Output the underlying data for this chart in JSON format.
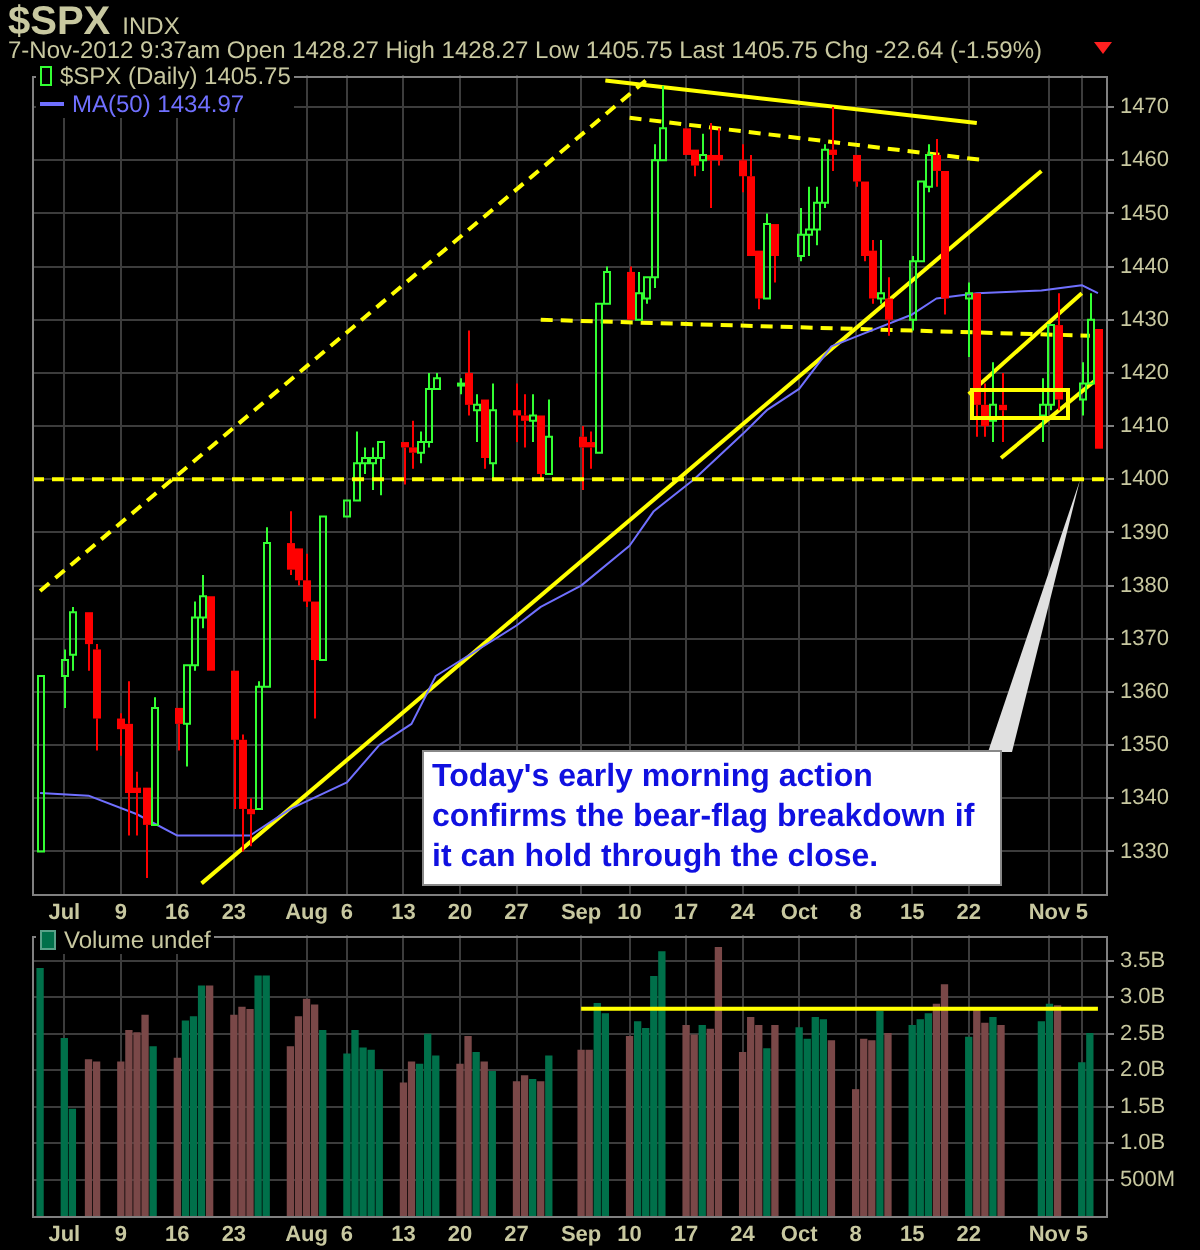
{
  "chart_data": [
    {
      "type": "candlestick",
      "title": "$SPX",
      "subtitle": "7-Nov-2012 9:37am  Open 1428.27  High 1428.27  Low 1405.75  Last 1405.75  Chg -22.64 (-1.59%)",
      "annotations": [
        "INDX",
        "Today's early morning action confirms the bear-flag breakdown if it can hold through the close."
      ],
      "x": [
        "2012-06-29",
        "2012-07-02",
        "2012-07-03",
        "2012-07-05",
        "2012-07-06",
        "2012-07-09",
        "2012-07-10",
        "2012-07-11",
        "2012-07-12",
        "2012-07-13",
        "2012-07-16",
        "2012-07-17",
        "2012-07-18",
        "2012-07-19",
        "2012-07-20",
        "2012-07-23",
        "2012-07-24",
        "2012-07-25",
        "2012-07-26",
        "2012-07-27",
        "2012-07-30",
        "2012-07-31",
        "2012-08-01",
        "2012-08-02",
        "2012-08-03",
        "2012-08-06",
        "2012-08-07",
        "2012-08-08",
        "2012-08-09",
        "2012-08-10",
        "2012-08-13",
        "2012-08-14",
        "2012-08-15",
        "2012-08-16",
        "2012-08-17",
        "2012-08-20",
        "2012-08-21",
        "2012-08-22",
        "2012-08-23",
        "2012-08-24",
        "2012-08-27",
        "2012-08-28",
        "2012-08-29",
        "2012-08-30",
        "2012-08-31",
        "2012-09-04",
        "2012-09-05",
        "2012-09-06",
        "2012-09-07",
        "2012-09-10",
        "2012-09-11",
        "2012-09-12",
        "2012-09-13",
        "2012-09-14",
        "2012-09-17",
        "2012-09-18",
        "2012-09-19",
        "2012-09-20",
        "2012-09-21",
        "2012-09-24",
        "2012-09-25",
        "2012-09-26",
        "2012-09-27",
        "2012-09-28",
        "2012-10-01",
        "2012-10-02",
        "2012-10-03",
        "2012-10-04",
        "2012-10-05",
        "2012-10-08",
        "2012-10-09",
        "2012-10-10",
        "2012-10-11",
        "2012-10-12",
        "2012-10-15",
        "2012-10-16",
        "2012-10-17",
        "2012-10-18",
        "2012-10-19",
        "2012-10-22",
        "2012-10-23",
        "2012-10-24",
        "2012-10-25",
        "2012-10-26",
        "2012-10-31",
        "2012-11-01",
        "2012-11-02",
        "2012-11-05",
        "2012-11-06",
        "2012-11-07"
      ],
      "xticks": [
        {
          "value": "2012-07-02",
          "label": "Jul"
        },
        {
          "value": "2012-07-09",
          "label": "9"
        },
        {
          "value": "2012-07-16",
          "label": "16"
        },
        {
          "value": "2012-07-23",
          "label": "23"
        },
        {
          "value": "2012-08-01",
          "label": "Aug"
        },
        {
          "value": "2012-08-06",
          "label": "6"
        },
        {
          "value": "2012-08-13",
          "label": "13"
        },
        {
          "value": "2012-08-20",
          "label": "20"
        },
        {
          "value": "2012-08-27",
          "label": "27"
        },
        {
          "value": "2012-09-04",
          "label": "Sep"
        },
        {
          "value": "2012-09-10",
          "label": "10"
        },
        {
          "value": "2012-09-17",
          "label": "17"
        },
        {
          "value": "2012-09-24",
          "label": "24"
        },
        {
          "value": "2012-10-01",
          "label": "Oct"
        },
        {
          "value": "2012-10-08",
          "label": "8"
        },
        {
          "value": "2012-10-15",
          "label": "15"
        },
        {
          "value": "2012-10-22",
          "label": "22"
        },
        {
          "value": "2012-11-01",
          "label": "Nov"
        },
        {
          "value": "2012-11-05",
          "label": "5"
        }
      ],
      "xlim": [
        "2012-06-28",
        "2012-11-08"
      ],
      "ylim": [
        1322,
        1476
      ],
      "yticks": [
        1330,
        1340,
        1350,
        1360,
        1370,
        1380,
        1390,
        1400,
        1410,
        1420,
        1430,
        1440,
        1450,
        1460,
        1470
      ],
      "grid": true,
      "legend": "top left",
      "ref_lines": [
        {
          "axis": "y",
          "value": 1400,
          "color": "#ffff00",
          "line_style": "dashed"
        }
      ],
      "series": [
        {
          "type": "candlestick",
          "name": "$SPX (Daily) 1405.75",
          "ohlc": [
            [
              1330,
              1363,
              1330,
              1363
            ],
            [
              1363,
              1368,
              1357,
              1366
            ],
            [
              1367,
              1376,
              1364,
              1375
            ],
            [
              1375,
              1375,
              1364,
              1369
            ],
            [
              1368,
              1369,
              1349,
              1355
            ],
            [
              1355,
              1356,
              1348,
              1353
            ],
            [
              1354,
              1362,
              1333,
              1341
            ],
            [
              1342,
              1345,
              1333,
              1341
            ],
            [
              1342,
              1342,
              1325,
              1335
            ],
            [
              1335,
              1359,
              1335,
              1357
            ],
            [
              1357,
              1357,
              1349,
              1354
            ],
            [
              1354,
              1365,
              1346,
              1365
            ],
            [
              1365,
              1377,
              1364,
              1374
            ],
            [
              1374,
              1382,
              1372,
              1378
            ],
            [
              1378,
              1378,
              1364,
              1364
            ],
            [
              1364,
              1364,
              1338,
              1351
            ],
            [
              1351,
              1352,
              1330,
              1338
            ],
            [
              1338,
              1340,
              1331,
              1337
            ],
            [
              1338,
              1362,
              1338,
              1361
            ],
            [
              1361,
              1391,
              1361,
              1388
            ],
            [
              1388,
              1394,
              1382,
              1383
            ],
            [
              1387,
              1387,
              1380,
              1381
            ],
            [
              1381,
              1386,
              1376,
              1377
            ],
            [
              1377,
              1377,
              1355,
              1366
            ],
            [
              1366,
              1393,
              1366,
              1393
            ],
            [
              1393,
              1396,
              1393,
              1396
            ],
            [
              1396,
              1409,
              1396,
              1403
            ],
            [
              1403,
              1406,
              1401,
              1404
            ],
            [
              1403,
              1406,
              1398,
              1404
            ],
            [
              1404,
              1407,
              1397,
              1407
            ],
            [
              1407,
              1407,
              1399,
              1406
            ],
            [
              1406,
              1411,
              1402,
              1405
            ],
            [
              1405,
              1409,
              1403,
              1407
            ],
            [
              1407,
              1420,
              1406,
              1417
            ],
            [
              1417,
              1420,
              1417,
              1419
            ],
            [
              1418,
              1419,
              1416,
              1418
            ],
            [
              1420,
              1428,
              1412,
              1414
            ],
            [
              1413,
              1416,
              1407,
              1414
            ],
            [
              1415,
              1415,
              1402,
              1404
            ],
            [
              1403,
              1418,
              1400,
              1413
            ],
            [
              1413,
              1418,
              1407,
              1412
            ],
            [
              1412,
              1416,
              1406,
              1411
            ],
            [
              1411,
              1416,
              1407,
              1412
            ],
            [
              1412,
              1412,
              1400,
              1401
            ],
            [
              1401,
              1415,
              1401,
              1408
            ],
            [
              1408,
              1410,
              1398,
              1406
            ],
            [
              1407,
              1409,
              1402,
              1406
            ],
            [
              1405,
              1433,
              1405,
              1433
            ],
            [
              1433,
              1440,
              1433,
              1439
            ],
            [
              1439,
              1440,
              1430,
              1430
            ],
            [
              1430,
              1439,
              1430,
              1435
            ],
            [
              1434,
              1438,
              1433,
              1438
            ],
            [
              1438,
              1463,
              1436,
              1460
            ],
            [
              1460,
              1474,
              1460,
              1466
            ],
            [
              1466,
              1466,
              1461,
              1461
            ],
            [
              1462,
              1462,
              1457,
              1459
            ],
            [
              1460,
              1465,
              1458,
              1461
            ],
            [
              1461,
              1467,
              1451,
              1460
            ],
            [
              1461,
              1466,
              1459,
              1460
            ],
            [
              1460,
              1463,
              1454,
              1457
            ],
            [
              1457,
              1461,
              1442,
              1442
            ],
            [
              1443,
              1443,
              1432,
              1434
            ],
            [
              1434,
              1450,
              1434,
              1448
            ],
            [
              1448,
              1448,
              1437,
              1442
            ],
            [
              1442,
              1451,
              1441,
              1446
            ],
            [
              1446,
              1455,
              1442,
              1447
            ],
            [
              1447,
              1455,
              1444,
              1452
            ],
            [
              1452,
              1463,
              1451,
              1462
            ],
            [
              1462,
              1470,
              1458,
              1461
            ],
            [
              1461,
              1461,
              1455,
              1456
            ],
            [
              1456,
              1456,
              1441,
              1442
            ],
            [
              1443,
              1445,
              1433,
              1434
            ],
            [
              1434,
              1445,
              1433,
              1435
            ],
            [
              1434,
              1438,
              1427,
              1430
            ],
            [
              1430,
              1442,
              1428,
              1441
            ],
            [
              1441,
              1456,
              1441,
              1456
            ],
            [
              1455,
              1463,
              1454,
              1461
            ],
            [
              1461,
              1464,
              1455,
              1458
            ],
            [
              1458,
              1458,
              1431,
              1434
            ],
            [
              1434,
              1437,
              1423,
              1435
            ],
            [
              1435,
              1435,
              1408,
              1414
            ],
            [
              1414,
              1418,
              1408,
              1410
            ],
            [
              1411,
              1422,
              1407,
              1414
            ],
            [
              1414,
              1420,
              1407,
              1413
            ],
            [
              1412,
              1419,
              1407,
              1414
            ],
            [
              1414,
              1429,
              1413,
              1429
            ],
            [
              1429,
              1435,
              1413,
              1415
            ],
            [
              1415,
              1422,
              1412,
              1418
            ],
            [
              1418,
              1435,
              1418,
              1430
            ],
            [
              1428.27,
              1428.27,
              1405.75,
              1405.75
            ]
          ],
          "colors": [
            "#33ff33",
            "#33ff33",
            "#33ff33",
            "#ff0000",
            "#ff0000",
            "#ff0000",
            "#ff0000",
            "#ff0000",
            "#ff0000",
            "#33ff33",
            "#ff0000",
            "#33ff33",
            "#33ff33",
            "#33ff33",
            "#ff0000",
            "#ff0000",
            "#ff0000",
            "#ff0000",
            "#33ff33",
            "#33ff33",
            "#ff0000",
            "#ff0000",
            "#ff0000",
            "#ff0000",
            "#33ff33",
            "#33ff33",
            "#33ff33",
            "#33ff33",
            "#33ff33",
            "#33ff33",
            "#ff0000",
            "#ff0000",
            "#33ff33",
            "#33ff33",
            "#33ff33",
            "#33ff33",
            "#ff0000",
            "#33ff33",
            "#ff0000",
            "#33ff33",
            "#ff0000",
            "#ff0000",
            "#33ff33",
            "#ff0000",
            "#33ff33",
            "#ff0000",
            "#ff0000",
            "#33ff33",
            "#33ff33",
            "#ff0000",
            "#33ff33",
            "#33ff33",
            "#33ff33",
            "#33ff33",
            "#ff0000",
            "#ff0000",
            "#33ff33",
            "#ff0000",
            "#ff0000",
            "#ff0000",
            "#ff0000",
            "#ff0000",
            "#33ff33",
            "#ff0000",
            "#33ff33",
            "#33ff33",
            "#33ff33",
            "#33ff33",
            "#ff0000",
            "#ff0000",
            "#ff0000",
            "#ff0000",
            "#33ff33",
            "#ff0000",
            "#33ff33",
            "#33ff33",
            "#33ff33",
            "#ff0000",
            "#ff0000",
            "#33ff33",
            "#ff0000",
            "#ff0000",
            "#33ff33",
            "#ff0000",
            "#33ff33",
            "#33ff33",
            "#ff0000",
            "#33ff33",
            "#33ff33",
            "#ff0000"
          ]
        },
        {
          "type": "line",
          "name": "MA(50) 1434.97",
          "color": "#7070ff",
          "x": [
            "2012-06-29",
            "2012-07-05",
            "2012-07-11",
            "2012-07-16",
            "2012-07-20",
            "2012-07-25",
            "2012-07-30",
            "2012-08-06",
            "2012-08-10",
            "2012-08-14",
            "2012-08-17",
            "2012-08-27",
            "2012-08-30",
            "2012-09-04",
            "2012-09-10",
            "2012-09-13",
            "2012-09-18",
            "2012-09-24",
            "2012-09-27",
            "2012-10-01",
            "2012-10-05",
            "2012-10-10",
            "2012-10-15",
            "2012-10-18",
            "2012-10-23",
            "2012-10-31",
            "2012-11-05",
            "2012-11-07"
          ],
          "values": [
            1341,
            1340.5,
            1337,
            1333,
            1333,
            1333,
            1338,
            1343,
            1350,
            1354,
            1363,
            1372.5,
            1376,
            1380,
            1387.5,
            1394,
            1400,
            1408.5,
            1413,
            1417,
            1425,
            1428,
            1431,
            1434,
            1435,
            1435.5,
            1436.5,
            1435
          ]
        },
        {
          "type": "line",
          "color": "#ffff00",
          "line_style": "dashed",
          "x": [
            "2012-06-29",
            "2012-09-12"
          ],
          "values": [
            1379,
            1475
          ]
        },
        {
          "type": "line",
          "color": "#ffff00",
          "line_style": "solid",
          "x": [
            "2012-07-19",
            "2012-10-31"
          ],
          "values": [
            1324,
            1458
          ]
        },
        {
          "type": "line",
          "color": "#ffff00",
          "line_style": "solid",
          "x": [
            "2012-09-07",
            "2012-10-23"
          ],
          "values": [
            1475,
            1467
          ]
        },
        {
          "type": "line",
          "color": "#ffff00",
          "line_style": "dashed",
          "x": [
            "2012-09-10",
            "2012-10-24"
          ],
          "values": [
            1468,
            1460
          ]
        },
        {
          "type": "line",
          "color": "#ffff00",
          "line_style": "dashed",
          "x": [
            "2012-08-30",
            "2012-11-06"
          ],
          "values": [
            1430,
            1427
          ]
        },
        {
          "type": "line",
          "color": "#ffff00",
          "line_style": "solid",
          "x": [
            "2012-10-22",
            "2012-11-05"
          ],
          "values": [
            1416,
            1435
          ]
        },
        {
          "type": "line",
          "color": "#ffff00",
          "line_style": "solid",
          "x": [
            "2012-10-26",
            "2012-11-07"
          ],
          "values": [
            1404,
            1419
          ]
        }
      ]
    },
    {
      "type": "bar",
      "x": [
        "2012-06-29",
        "2012-07-02",
        "2012-07-03",
        "2012-07-05",
        "2012-07-06",
        "2012-07-09",
        "2012-07-10",
        "2012-07-11",
        "2012-07-12",
        "2012-07-13",
        "2012-07-16",
        "2012-07-17",
        "2012-07-18",
        "2012-07-19",
        "2012-07-20",
        "2012-07-23",
        "2012-07-24",
        "2012-07-25",
        "2012-07-26",
        "2012-07-27",
        "2012-07-30",
        "2012-07-31",
        "2012-08-01",
        "2012-08-02",
        "2012-08-03",
        "2012-08-06",
        "2012-08-07",
        "2012-08-08",
        "2012-08-09",
        "2012-08-10",
        "2012-08-13",
        "2012-08-14",
        "2012-08-15",
        "2012-08-16",
        "2012-08-17",
        "2012-08-20",
        "2012-08-21",
        "2012-08-22",
        "2012-08-23",
        "2012-08-24",
        "2012-08-27",
        "2012-08-28",
        "2012-08-29",
        "2012-08-30",
        "2012-08-31",
        "2012-09-04",
        "2012-09-05",
        "2012-09-06",
        "2012-09-07",
        "2012-09-10",
        "2012-09-11",
        "2012-09-12",
        "2012-09-13",
        "2012-09-14",
        "2012-09-17",
        "2012-09-18",
        "2012-09-19",
        "2012-09-20",
        "2012-09-21",
        "2012-09-24",
        "2012-09-25",
        "2012-09-26",
        "2012-09-27",
        "2012-09-28",
        "2012-10-01",
        "2012-10-02",
        "2012-10-03",
        "2012-10-04",
        "2012-10-05",
        "2012-10-08",
        "2012-10-09",
        "2012-10-10",
        "2012-10-11",
        "2012-10-12",
        "2012-10-15",
        "2012-10-16",
        "2012-10-17",
        "2012-10-18",
        "2012-10-19",
        "2012-10-22",
        "2012-10-23",
        "2012-10-24",
        "2012-10-25",
        "2012-10-26",
        "2012-10-31",
        "2012-11-01",
        "2012-11-02",
        "2012-11-05",
        "2012-11-06"
      ],
      "xticks": [
        {
          "value": "2012-07-02",
          "label": "Jul"
        },
        {
          "value": "2012-07-09",
          "label": "9"
        },
        {
          "value": "2012-07-16",
          "label": "16"
        },
        {
          "value": "2012-07-23",
          "label": "23"
        },
        {
          "value": "2012-08-01",
          "label": "Aug"
        },
        {
          "value": "2012-08-06",
          "label": "6"
        },
        {
          "value": "2012-08-13",
          "label": "13"
        },
        {
          "value": "2012-08-20",
          "label": "20"
        },
        {
          "value": "2012-08-27",
          "label": "27"
        },
        {
          "value": "2012-09-04",
          "label": "Sep"
        },
        {
          "value": "2012-09-10",
          "label": "10"
        },
        {
          "value": "2012-09-17",
          "label": "17"
        },
        {
          "value": "2012-09-24",
          "label": "24"
        },
        {
          "value": "2012-10-01",
          "label": "Oct"
        },
        {
          "value": "2012-10-08",
          "label": "8"
        },
        {
          "value": "2012-10-15",
          "label": "15"
        },
        {
          "value": "2012-10-22",
          "label": "22"
        },
        {
          "value": "2012-11-01",
          "label": "Nov"
        },
        {
          "value": "2012-11-05",
          "label": "5"
        }
      ],
      "xlim": [
        "2012-06-28",
        "2012-11-08"
      ],
      "ylim": [
        0,
        3850000000
      ],
      "yticks": [
        {
          "value": 500000000,
          "label": "500M"
        },
        {
          "value": 1000000000,
          "label": "1.0B"
        },
        {
          "value": 1500000000,
          "label": "1.5B"
        },
        {
          "value": 2000000000,
          "label": "2.0B"
        },
        {
          "value": 2500000000,
          "label": "2.5B"
        },
        {
          "value": 3000000000,
          "label": "3.0B"
        },
        {
          "value": 3500000000,
          "label": "3.5B"
        }
      ],
      "grid": true,
      "legend": "top left",
      "series": [
        {
          "type": "bar",
          "name": "Volume undef",
          "values": [
            3390000000,
            2430000000,
            1460000000,
            2140000000,
            2110000000,
            2110000000,
            2540000000,
            2510000000,
            2750000000,
            2320000000,
            2160000000,
            2670000000,
            2730000000,
            3150000000,
            3150000000,
            2750000000,
            2860000000,
            2830000000,
            3290000000,
            3290000000,
            2320000000,
            2730000000,
            2970000000,
            2890000000,
            2540000000,
            2220000000,
            2540000000,
            2300000000,
            2270000000,
            2000000000,
            1820000000,
            2110000000,
            2080000000,
            2490000000,
            2190000000,
            2080000000,
            2460000000,
            2240000000,
            2110000000,
            1980000000,
            1840000000,
            1920000000,
            1870000000,
            1840000000,
            2190000000,
            2270000000,
            2270000000,
            2910000000,
            2770000000,
            2460000000,
            2660000000,
            2570000000,
            3280000000,
            3620000000,
            2610000000,
            2480000000,
            2610000000,
            2560000000,
            3680000000,
            2240000000,
            2720000000,
            2610000000,
            2290000000,
            2610000000,
            2580000000,
            2420000000,
            2720000000,
            2690000000,
            2400000000,
            1730000000,
            2420000000,
            2400000000,
            2800000000,
            2500000000,
            2610000000,
            2690000000,
            2770000000,
            2900000000,
            3170000000,
            2450000000,
            2820000000,
            2640000000,
            2720000000,
            2610000000,
            2660000000,
            2900000000,
            2880000000,
            2100000000,
            2500000000
          ],
          "colors": [
            "#00704a",
            "#00704a",
            "#00704a",
            "#7a4848",
            "#7a4848",
            "#7a4848",
            "#7a4848",
            "#7a4848",
            "#7a4848",
            "#00704a",
            "#7a4848",
            "#00704a",
            "#00704a",
            "#00704a",
            "#7a4848",
            "#7a4848",
            "#7a4848",
            "#7a4848",
            "#00704a",
            "#00704a",
            "#7a4848",
            "#7a4848",
            "#7a4848",
            "#7a4848",
            "#00704a",
            "#00704a",
            "#00704a",
            "#00704a",
            "#00704a",
            "#00704a",
            "#7a4848",
            "#7a4848",
            "#00704a",
            "#00704a",
            "#00704a",
            "#7a4848",
            "#7a4848",
            "#00704a",
            "#7a4848",
            "#00704a",
            "#7a4848",
            "#7a4848",
            "#00704a",
            "#7a4848",
            "#00704a",
            "#7a4848",
            "#7a4848",
            "#00704a",
            "#00704a",
            "#7a4848",
            "#00704a",
            "#00704a",
            "#00704a",
            "#00704a",
            "#7a4848",
            "#7a4848",
            "#00704a",
            "#7a4848",
            "#7a4848",
            "#7a4848",
            "#7a4848",
            "#7a4848",
            "#00704a",
            "#7a4848",
            "#00704a",
            "#00704a",
            "#00704a",
            "#00704a",
            "#7a4848",
            "#7a4848",
            "#7a4848",
            "#7a4848",
            "#00704a",
            "#7a4848",
            "#00704a",
            "#00704a",
            "#00704a",
            "#7a4848",
            "#7a4848",
            "#00704a",
            "#7a4848",
            "#7a4848",
            "#00704a",
            "#7a4848",
            "#00704a",
            "#00704a",
            "#7a4848",
            "#00704a",
            "#00704a"
          ]
        },
        {
          "type": "line",
          "color": "#ffff00",
          "line_style": "solid",
          "x": [
            "2012-09-04",
            "2012-11-07"
          ],
          "values": [
            2840000000,
            2840000000
          ]
        }
      ]
    }
  ]
}
